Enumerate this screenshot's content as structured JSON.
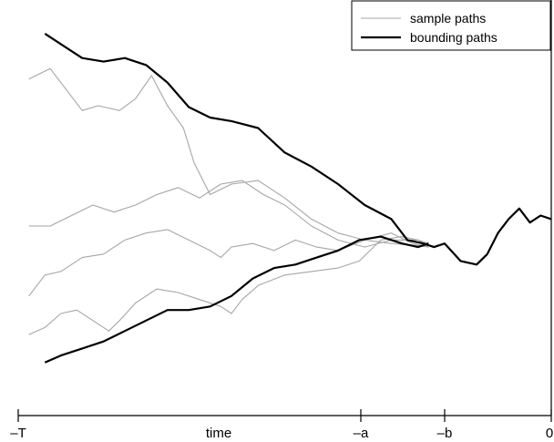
{
  "chart_data": {
    "type": "line",
    "title": "",
    "xlabel": "time",
    "ylabel": "",
    "xlim": [
      0,
      1
    ],
    "ylim": [
      -2.6,
      3
    ],
    "grid": false,
    "legend_position": "top-right",
    "x_ticks": [
      {
        "value": 0.0,
        "label": "–T"
      },
      {
        "value": 0.625,
        "label": "–a"
      },
      {
        "value": 0.79,
        "label": "–b"
      },
      {
        "value": 1.0,
        "label": "0"
      }
    ],
    "colors": {
      "sample": "#a6a6a6",
      "bounding": "#000000"
    },
    "legend": [
      {
        "label": "sample paths",
        "style": "sample"
      },
      {
        "label": "bounding paths",
        "style": "bounding"
      }
    ],
    "series": [
      {
        "group": "sample",
        "x": [
          0.02,
          0.06,
          0.09,
          0.12,
          0.15,
          0.19,
          0.22,
          0.25,
          0.28,
          0.31,
          0.33,
          0.36,
          0.4,
          0.45,
          0.5,
          0.55,
          0.6,
          0.65,
          0.7,
          0.75,
          0.77
        ],
        "y": [
          2.0,
          2.15,
          1.85,
          1.55,
          1.62,
          1.55,
          1.72,
          2.05,
          1.62,
          1.3,
          0.8,
          0.35,
          0.5,
          0.55,
          0.3,
          0.0,
          -0.2,
          -0.3,
          -0.35,
          -0.38,
          -0.4
        ]
      },
      {
        "group": "sample",
        "x": [
          0.02,
          0.06,
          0.1,
          0.14,
          0.18,
          0.22,
          0.26,
          0.3,
          0.34,
          0.38,
          0.42,
          0.46,
          0.5,
          0.55,
          0.6,
          0.65,
          0.7,
          0.75,
          0.77
        ],
        "y": [
          -0.1,
          -0.1,
          0.05,
          0.2,
          0.1,
          0.2,
          0.35,
          0.45,
          0.3,
          0.5,
          0.55,
          0.35,
          0.2,
          -0.1,
          -0.3,
          -0.4,
          -0.3,
          -0.3,
          -0.35
        ]
      },
      {
        "group": "sample",
        "x": [
          0.02,
          0.05,
          0.08,
          0.12,
          0.16,
          0.2,
          0.24,
          0.28,
          0.32,
          0.36,
          0.38,
          0.4,
          0.44,
          0.48,
          0.52,
          0.56,
          0.6,
          0.65,
          0.7,
          0.74,
          0.77
        ],
        "y": [
          -1.1,
          -0.8,
          -0.75,
          -0.55,
          -0.5,
          -0.3,
          -0.2,
          -0.15,
          -0.3,
          -0.45,
          -0.55,
          -0.4,
          -0.35,
          -0.45,
          -0.3,
          -0.4,
          -0.45,
          -0.3,
          -0.2,
          -0.35,
          -0.4
        ]
      },
      {
        "group": "sample",
        "x": [
          0.02,
          0.05,
          0.08,
          0.11,
          0.14,
          0.17,
          0.19,
          0.22,
          0.26,
          0.3,
          0.34,
          0.38,
          0.4,
          0.42,
          0.45,
          0.5,
          0.55,
          0.6,
          0.64,
          0.68,
          0.72,
          0.75,
          0.77
        ],
        "y": [
          -1.65,
          -1.55,
          -1.35,
          -1.3,
          -1.45,
          -1.6,
          -1.45,
          -1.2,
          -1.0,
          -1.05,
          -1.15,
          -1.25,
          -1.35,
          -1.15,
          -0.95,
          -0.8,
          -0.75,
          -0.7,
          -0.6,
          -0.3,
          -0.25,
          -0.3,
          -0.4
        ]
      },
      {
        "group": "bounding",
        "x": [
          0.05,
          0.08,
          0.12,
          0.16,
          0.2,
          0.24,
          0.28,
          0.32,
          0.36,
          0.4,
          0.45,
          0.5,
          0.55,
          0.6,
          0.65,
          0.7,
          0.73,
          0.76,
          0.78,
          0.8,
          0.83,
          0.86,
          0.88,
          0.9,
          0.92,
          0.94,
          0.96,
          0.98,
          1.0
        ],
        "y": [
          2.65,
          2.5,
          2.3,
          2.25,
          2.3,
          2.2,
          1.95,
          1.6,
          1.45,
          1.4,
          1.3,
          0.95,
          0.75,
          0.5,
          0.2,
          0.0,
          -0.3,
          -0.35,
          -0.4,
          -0.35,
          -0.6,
          -0.65,
          -0.5,
          -0.2,
          0.0,
          0.15,
          -0.05,
          0.05,
          0.0
        ]
      },
      {
        "group": "bounding",
        "x": [
          0.05,
          0.08,
          0.12,
          0.16,
          0.2,
          0.24,
          0.28,
          0.32,
          0.36,
          0.4,
          0.44,
          0.48,
          0.52,
          0.56,
          0.6,
          0.64,
          0.68,
          0.72,
          0.75,
          0.77
        ],
        "y": [
          -2.05,
          -1.95,
          -1.85,
          -1.75,
          -1.6,
          -1.45,
          -1.3,
          -1.3,
          -1.25,
          -1.1,
          -0.85,
          -0.7,
          -0.65,
          -0.55,
          -0.45,
          -0.3,
          -0.25,
          -0.35,
          -0.4,
          -0.35
        ]
      }
    ]
  }
}
